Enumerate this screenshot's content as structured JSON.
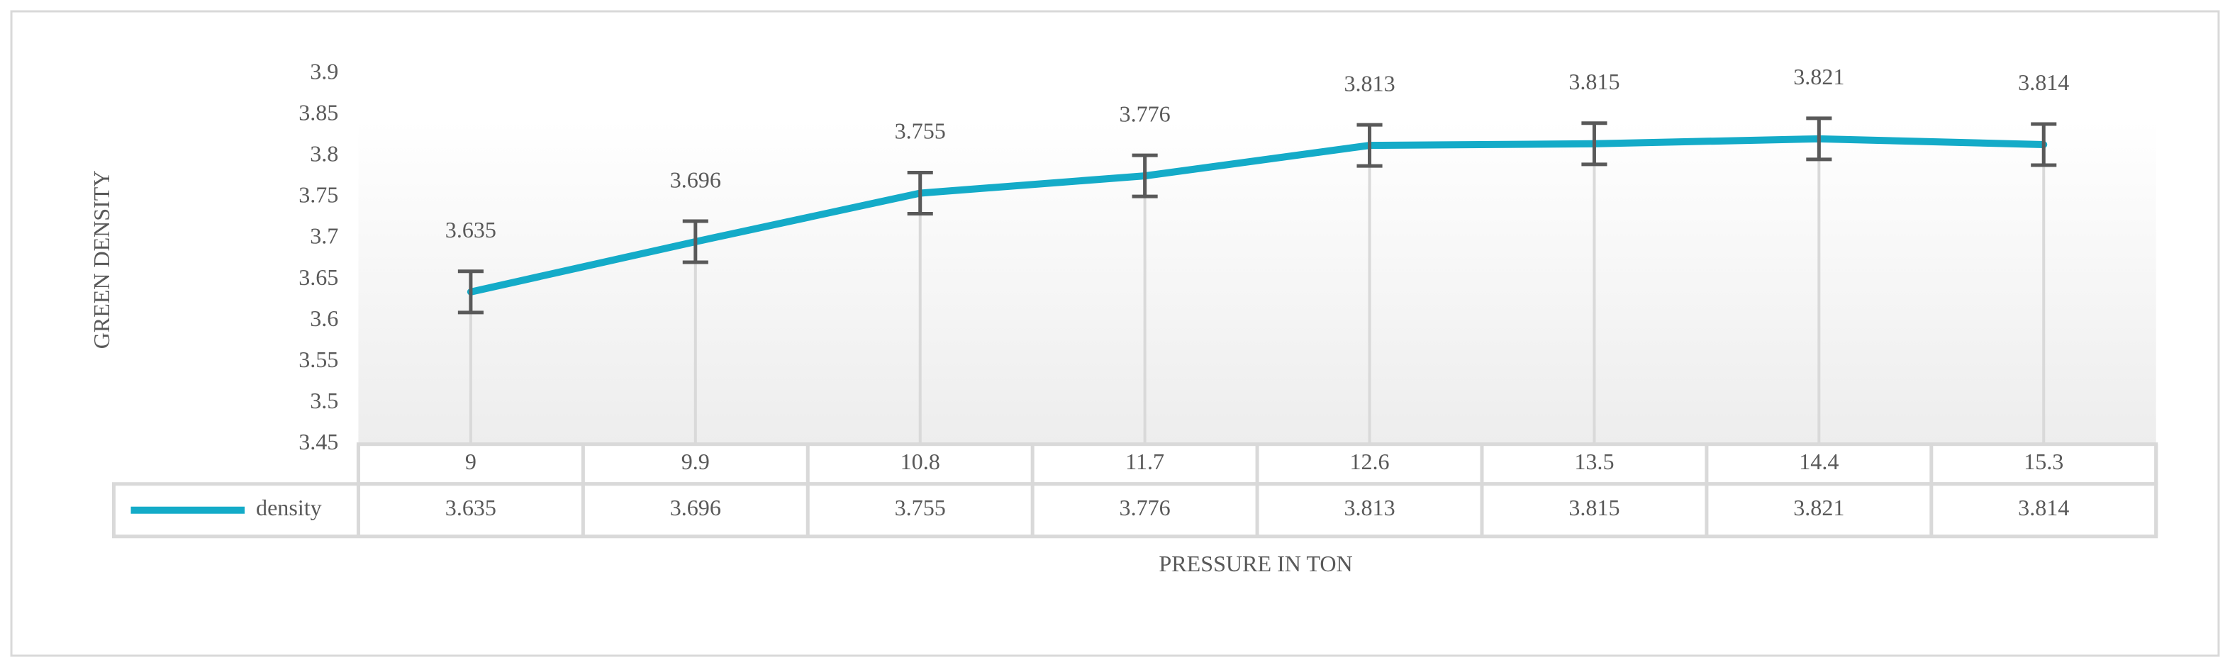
{
  "chart_data": {
    "type": "line",
    "y_label": "GREEN DENSITY",
    "x_label": "PRESSURE IN TON",
    "categories": [
      "9",
      "9.9",
      "10.8",
      "11.7",
      "12.6",
      "13.5",
      "14.4",
      "15.3"
    ],
    "series": [
      {
        "name": "density",
        "color": "#14abc8",
        "values": [
          3.635,
          3.696,
          3.755,
          3.776,
          3.813,
          3.815,
          3.821,
          3.814
        ],
        "errors": [
          0.025,
          0.025,
          0.025,
          0.025,
          0.025,
          0.025,
          0.025,
          0.025
        ]
      }
    ],
    "ylim": [
      3.45,
      3.9
    ],
    "yticks": [
      3.45,
      3.5,
      3.55,
      3.6,
      3.65,
      3.7,
      3.75,
      3.8,
      3.85,
      3.9
    ]
  }
}
